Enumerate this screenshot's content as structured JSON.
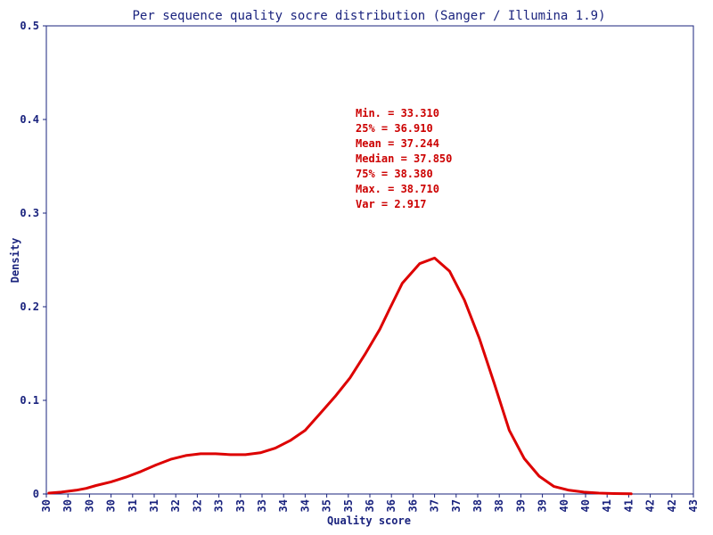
{
  "chart_data": {
    "type": "line",
    "title": "Per sequence quality socre distribution (Sanger / Illumina 1.9)",
    "xlabel": "Quality score",
    "ylabel": "Density",
    "ylim": [
      0,
      0.5
    ],
    "yticks": [
      "0",
      "0.1",
      "0.2",
      "0.3",
      "0.4",
      "0.5"
    ],
    "xticks": [
      "30",
      "30",
      "30",
      "30",
      "31",
      "31",
      "32",
      "32",
      "33",
      "33",
      "33",
      "34",
      "34",
      "35",
      "35",
      "36",
      "36",
      "36",
      "37",
      "37",
      "38",
      "38",
      "39",
      "39",
      "40",
      "40",
      "41",
      "41",
      "42",
      "42",
      "43"
    ],
    "grid": false,
    "line_color": "#dd0000",
    "series": [
      {
        "x": [
          30.05,
          30.3,
          30.6,
          30.8,
          31.0,
          31.3,
          31.6,
          31.9,
          32.2,
          32.5,
          32.8,
          33.1,
          33.4,
          33.7,
          34.0,
          34.3,
          34.6,
          34.9,
          35.2,
          35.5,
          35.8,
          36.1,
          36.4,
          36.7,
          36.9,
          37.15,
          37.5,
          37.8,
          38.1,
          38.4,
          38.7,
          39.0,
          39.3,
          39.6,
          39.9,
          40.2,
          40.5,
          40.8,
          41.1,
          41.4,
          41.75
        ],
        "values": [
          0.001,
          0.002,
          0.004,
          0.006,
          0.009,
          0.013,
          0.018,
          0.024,
          0.031,
          0.037,
          0.041,
          0.043,
          0.043,
          0.042,
          0.042,
          0.044,
          0.049,
          0.057,
          0.068,
          0.086,
          0.104,
          0.124,
          0.149,
          0.176,
          0.198,
          0.225,
          0.246,
          0.252,
          0.238,
          0.207,
          0.166,
          0.118,
          0.068,
          0.038,
          0.019,
          0.008,
          0.004,
          0.002,
          0.001,
          0.0005,
          0.0002
        ]
      }
    ],
    "stats": [
      "Min. = 33.310",
      "25% = 36.910",
      "Mean = 37.244",
      "Median = 37.850",
      "75% = 38.380",
      "Max. = 38.710",
      "Var = 2.917"
    ]
  }
}
